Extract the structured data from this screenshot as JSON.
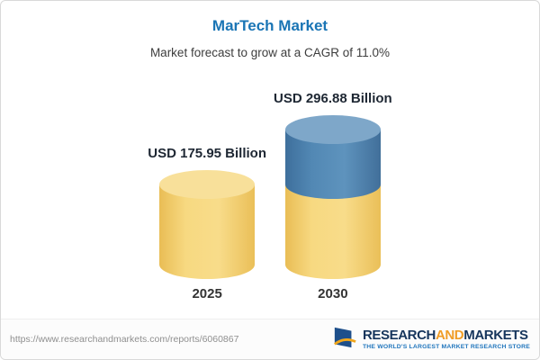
{
  "chart_data": {
    "type": "bar",
    "title": "MarTech Market",
    "subtitle": "Market forecast to grow at a CAGR of 11.0%",
    "cagr": "11.0%",
    "unit": "USD Billion",
    "categories": [
      "2025",
      "2030"
    ],
    "values": [
      175.95,
      296.88
    ],
    "ylim": [
      0,
      300
    ],
    "legend": false,
    "grid": false,
    "bars": [
      {
        "category": "2025",
        "label": "USD 175.95 Billion",
        "total": 175.95,
        "segments": [
          {
            "color": "yellow",
            "value": 175.95
          }
        ]
      },
      {
        "category": "2030",
        "label": "USD 296.88 Billion",
        "total": 296.88,
        "segments": [
          {
            "color": "yellow",
            "value": 175.95
          },
          {
            "color": "blue",
            "value": 120.93
          }
        ]
      }
    ],
    "colors": {
      "yellow": "#F3CC62",
      "blue": "#4A7FAB",
      "title_blue": "#1A75B5"
    }
  },
  "footer": {
    "url": "https://www.researchandmarkets.com/reports/6060867",
    "logo": {
      "research": "RESEARCH",
      "and": "AND",
      "markets": "MARKETS",
      "tagline": "THE WORLD'S LARGEST MARKET RESEARCH STORE"
    }
  }
}
